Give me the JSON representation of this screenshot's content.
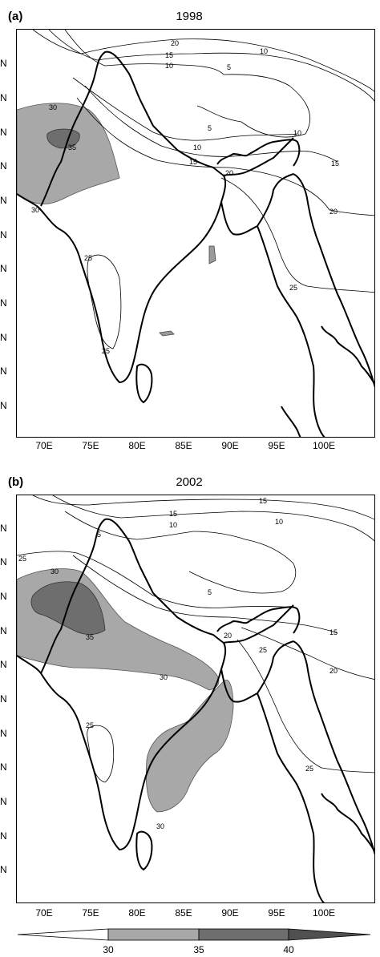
{
  "panels": [
    {
      "label": "(a)",
      "title": "1998"
    },
    {
      "label": "(b)",
      "title": "2002"
    }
  ],
  "lat_tick_text": "N",
  "lon_labels": [
    "70E",
    "75E",
    "80E",
    "85E",
    "90E",
    "95E",
    "100E"
  ],
  "contour_labels_a": [
    "20",
    "15",
    "10",
    "10",
    "5",
    "5",
    "10",
    "10",
    "15",
    "20",
    "15",
    "20",
    "30",
    "35",
    "30",
    "25",
    "25",
    "25"
  ],
  "contour_labels_b": [
    "15",
    "15",
    "10",
    "10",
    "5",
    "5",
    "25",
    "30",
    "35",
    "20",
    "25",
    "15",
    "20",
    "30",
    "25",
    "25",
    "30"
  ],
  "colorbar": {
    "labels": [
      "30",
      "35",
      "40"
    ]
  },
  "colors": {
    "fill30": "#a8a8a8",
    "fill35": "#686868",
    "fill40": "#505050",
    "line": "#000000"
  }
}
